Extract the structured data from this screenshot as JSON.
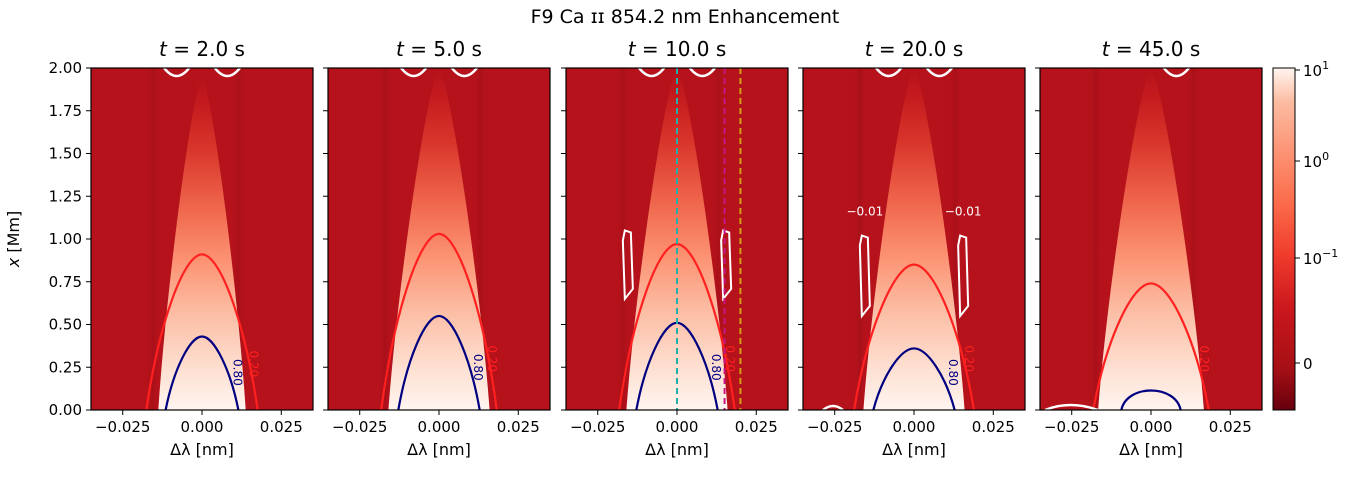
{
  "figure": {
    "suptitle": "F9 Ca ɪɪ 854.2 nm Enhancement",
    "colorbar": {
      "ticks": [
        "10^1",
        "10^0",
        "10^-1",
        "0"
      ],
      "colormap": "Reds_r"
    }
  },
  "chart_data": [
    {
      "type": "heatmap",
      "title_prefix": "t = ",
      "time": "2.0 s",
      "xlabel": "Δλ [nm]",
      "ylabel": "x [Mm]",
      "xticks": [
        "−0.025",
        "0.000",
        "0.025"
      ],
      "yticks": [
        "0.00",
        "0.25",
        "0.50",
        "0.75",
        "1.00",
        "1.25",
        "1.50",
        "1.75",
        "2.00"
      ],
      "xlim": [
        -0.035,
        0.035
      ],
      "ylim": [
        0,
        2
      ],
      "core_halfwidth": 0.0095,
      "core_height": 1.95,
      "contours": [
        {
          "level": "0.20",
          "color": "#ff2020",
          "peak": 0.91,
          "halfwidth": 0.013,
          "label_at": 0.27
        },
        {
          "level": "0.80",
          "color": "#000080",
          "peak": 0.43,
          "halfwidth": 0.0085,
          "label_at": 0.22,
          "gap_right": true
        }
      ],
      "white_arcs": [
        {
          "x": -0.008
        },
        {
          "x": 0.008
        }
      ],
      "vlines": []
    },
    {
      "type": "heatmap",
      "title_prefix": "t = ",
      "time": "5.0 s",
      "xlabel": "Δλ [nm]",
      "ylabel": "",
      "xticks": [
        "−0.025",
        "0.000",
        "0.025"
      ],
      "xlim": [
        -0.035,
        0.035
      ],
      "ylim": [
        0,
        2
      ],
      "core_halfwidth": 0.011,
      "core_height": 2.0,
      "contours": [
        {
          "level": "0.20",
          "color": "#ff2020",
          "peak": 1.03,
          "halfwidth": 0.0135,
          "label_at": 0.3
        },
        {
          "level": "0.80",
          "color": "#000080",
          "peak": 0.55,
          "halfwidth": 0.0095,
          "label_at": 0.25,
          "gap_right": true
        }
      ],
      "white_arcs": [
        {
          "x": -0.008
        },
        {
          "x": 0.008
        }
      ],
      "vlines": []
    },
    {
      "type": "heatmap",
      "title_prefix": "t = ",
      "time": "10.0 s",
      "xlabel": "Δλ [nm]",
      "ylabel": "",
      "xticks": [
        "−0.025",
        "0.000",
        "0.025"
      ],
      "xlim": [
        -0.035,
        0.035
      ],
      "ylim": [
        0,
        2
      ],
      "core_halfwidth": 0.011,
      "core_height": 2.0,
      "contours": [
        {
          "level": "0.20",
          "color": "#ff2020",
          "peak": 0.97,
          "halfwidth": 0.0135,
          "label_at": 0.3
        },
        {
          "level": "0.80",
          "color": "#000080",
          "peak": 0.51,
          "halfwidth": 0.0095,
          "label_at": 0.25,
          "gap_right": true
        }
      ],
      "white_arcs": [
        {
          "x": -0.008
        },
        {
          "x": 0.008
        }
      ],
      "white_loops": [
        {
          "x": -0.0155,
          "y0": 0.65,
          "y1": 1.05
        },
        {
          "x": 0.0155,
          "y0": 0.65,
          "y1": 1.05
        }
      ],
      "vlines": [
        {
          "x": 0.0,
          "color": "#20b2aa"
        },
        {
          "x": 0.015,
          "color": "#c71585"
        },
        {
          "x": 0.02,
          "color": "#d4a017"
        }
      ]
    },
    {
      "type": "heatmap",
      "title_prefix": "t = ",
      "time": "20.0 s",
      "xlabel": "Δλ [nm]",
      "ylabel": "",
      "xticks": [
        "−0.025",
        "0.000",
        "0.025"
      ],
      "xlim": [
        -0.035,
        0.035
      ],
      "ylim": [
        0,
        2
      ],
      "core_halfwidth": 0.011,
      "core_height": 2.0,
      "contours": [
        {
          "level": "0.20",
          "color": "#ff2020",
          "peak": 0.85,
          "halfwidth": 0.014,
          "label_at": 0.3
        },
        {
          "level": "0.80",
          "color": "#000080",
          "peak": 0.36,
          "halfwidth": 0.0095,
          "label_at": 0.22,
          "gap_right": true
        }
      ],
      "white_arcs": [
        {
          "x": -0.008
        },
        {
          "x": 0.008
        }
      ],
      "white_loops": [
        {
          "x": -0.0155,
          "y0": 0.55,
          "y1": 1.02
        },
        {
          "x": 0.0155,
          "y0": 0.55,
          "y1": 1.02
        }
      ],
      "white_labels": [
        {
          "text": "0.01",
          "x": -0.0155,
          "y": 1.16
        },
        {
          "text": "0.01",
          "x": 0.0155,
          "y": 1.16
        }
      ],
      "vlines": []
    },
    {
      "type": "heatmap",
      "title_prefix": "t = ",
      "time": "45.0 s",
      "xlabel": "Δλ [nm]",
      "ylabel": "",
      "xticks": [
        "−0.025",
        "0.000",
        "0.025"
      ],
      "xlim": [
        -0.035,
        0.035
      ],
      "ylim": [
        0,
        2
      ],
      "core_halfwidth": 0.0115,
      "core_height": 2.0,
      "contours": [
        {
          "level": "0.20",
          "color": "#ff2020",
          "peak": 0.74,
          "halfwidth": 0.0135,
          "label_at": 0.3
        },
        {
          "level": "",
          "color": "#000080",
          "peak": 0.16,
          "halfwidth": 0.0085,
          "closed": true
        }
      ],
      "white_arcs": [
        {
          "x": 0.008
        }
      ],
      "vlines": []
    }
  ]
}
